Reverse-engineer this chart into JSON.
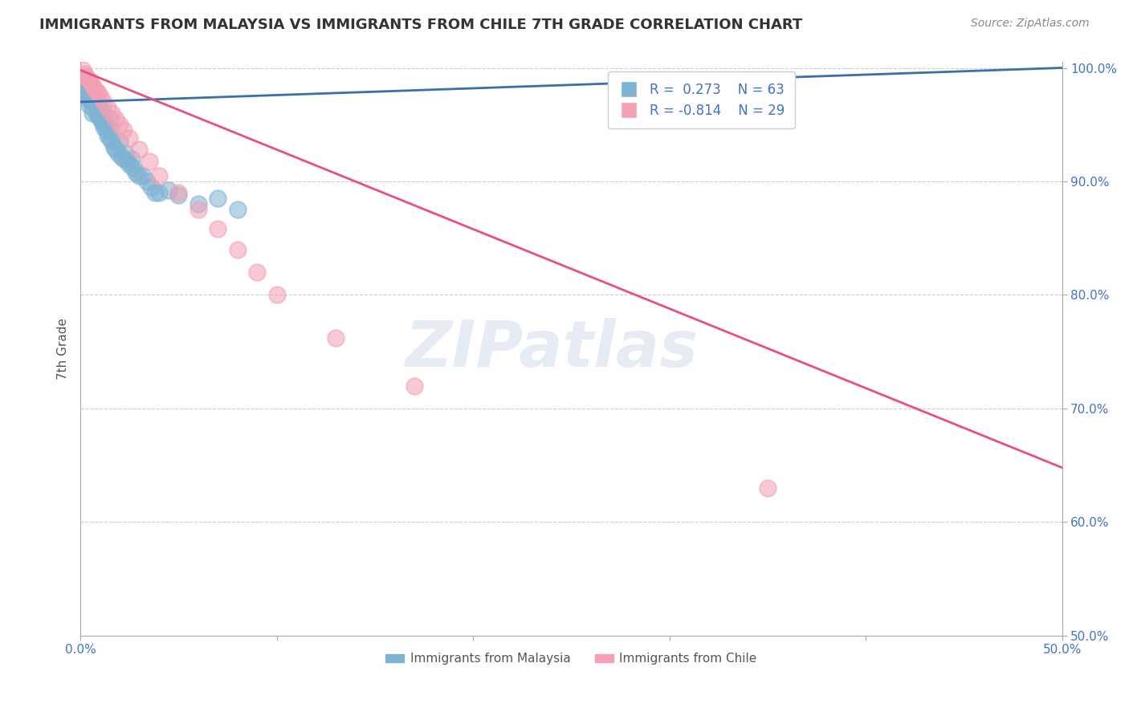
{
  "title": "IMMIGRANTS FROM MALAYSIA VS IMMIGRANTS FROM CHILE 7TH GRADE CORRELATION CHART",
  "source_text": "Source: ZipAtlas.com",
  "ylabel": "7th Grade",
  "xlim": [
    0.0,
    0.5
  ],
  "ylim": [
    0.5,
    1.005
  ],
  "xtick_positions": [
    0.0,
    0.1,
    0.2,
    0.3,
    0.4,
    0.5
  ],
  "xtick_labels": [
    "0.0%",
    "",
    "",
    "",
    "",
    "50.0%"
  ],
  "ytick_positions": [
    0.5,
    0.6,
    0.7,
    0.8,
    0.9,
    1.0
  ],
  "ytick_labels": [
    "50.0%",
    "60.0%",
    "70.0%",
    "80.0%",
    "90.0%",
    "100.0%"
  ],
  "blue_R": 0.273,
  "blue_N": 63,
  "pink_R": -0.814,
  "pink_N": 29,
  "blue_color": "#7fb3d3",
  "pink_color": "#f4a0b5",
  "blue_line_color": "#3a6fad",
  "pink_line_color": "#e8507a",
  "watermark": "ZIPatlas",
  "background_color": "#ffffff",
  "title_fontsize": 13,
  "source_fontsize": 10,
  "blue_line_x": [
    0.0,
    0.5
  ],
  "blue_line_y": [
    0.97,
    1.0
  ],
  "pink_line_x": [
    0.0,
    0.5
  ],
  "pink_line_y": [
    0.998,
    0.648
  ],
  "blue_scatter_x": [
    0.001,
    0.002,
    0.002,
    0.003,
    0.003,
    0.004,
    0.004,
    0.004,
    0.005,
    0.005,
    0.006,
    0.006,
    0.006,
    0.007,
    0.007,
    0.007,
    0.008,
    0.008,
    0.009,
    0.009,
    0.01,
    0.01,
    0.011,
    0.011,
    0.012,
    0.012,
    0.013,
    0.013,
    0.014,
    0.015,
    0.015,
    0.016,
    0.017,
    0.018,
    0.019,
    0.02,
    0.021,
    0.022,
    0.023,
    0.024,
    0.025,
    0.026,
    0.027,
    0.028,
    0.03,
    0.032,
    0.034,
    0.036,
    0.038,
    0.04,
    0.045,
    0.05,
    0.06,
    0.07,
    0.08,
    0.002,
    0.003,
    0.005,
    0.007,
    0.009,
    0.01,
    0.012,
    0.015
  ],
  "blue_scatter_y": [
    0.98,
    0.985,
    0.978,
    0.982,
    0.975,
    0.988,
    0.972,
    0.968,
    0.975,
    0.98,
    0.97,
    0.965,
    0.96,
    0.975,
    0.972,
    0.968,
    0.965,
    0.96,
    0.962,
    0.958,
    0.955,
    0.96,
    0.958,
    0.952,
    0.955,
    0.948,
    0.95,
    0.945,
    0.94,
    0.945,
    0.938,
    0.935,
    0.93,
    0.928,
    0.925,
    0.935,
    0.922,
    0.92,
    0.925,
    0.918,
    0.915,
    0.92,
    0.912,
    0.908,
    0.905,
    0.905,
    0.9,
    0.895,
    0.89,
    0.89,
    0.892,
    0.888,
    0.88,
    0.885,
    0.875,
    0.99,
    0.992,
    0.985,
    0.978,
    0.97,
    0.965,
    0.96,
    0.955
  ],
  "pink_scatter_x": [
    0.001,
    0.002,
    0.003,
    0.004,
    0.005,
    0.006,
    0.007,
    0.008,
    0.009,
    0.01,
    0.012,
    0.014,
    0.016,
    0.018,
    0.02,
    0.022,
    0.025,
    0.03,
    0.035,
    0.04,
    0.05,
    0.06,
    0.07,
    0.08,
    0.09,
    0.1,
    0.13,
    0.17,
    0.35
  ],
  "pink_scatter_y": [
    0.998,
    0.995,
    0.992,
    0.99,
    0.988,
    0.985,
    0.982,
    0.98,
    0.978,
    0.975,
    0.97,
    0.965,
    0.96,
    0.955,
    0.95,
    0.945,
    0.938,
    0.928,
    0.918,
    0.905,
    0.89,
    0.875,
    0.858,
    0.84,
    0.82,
    0.8,
    0.762,
    0.72,
    0.63
  ]
}
